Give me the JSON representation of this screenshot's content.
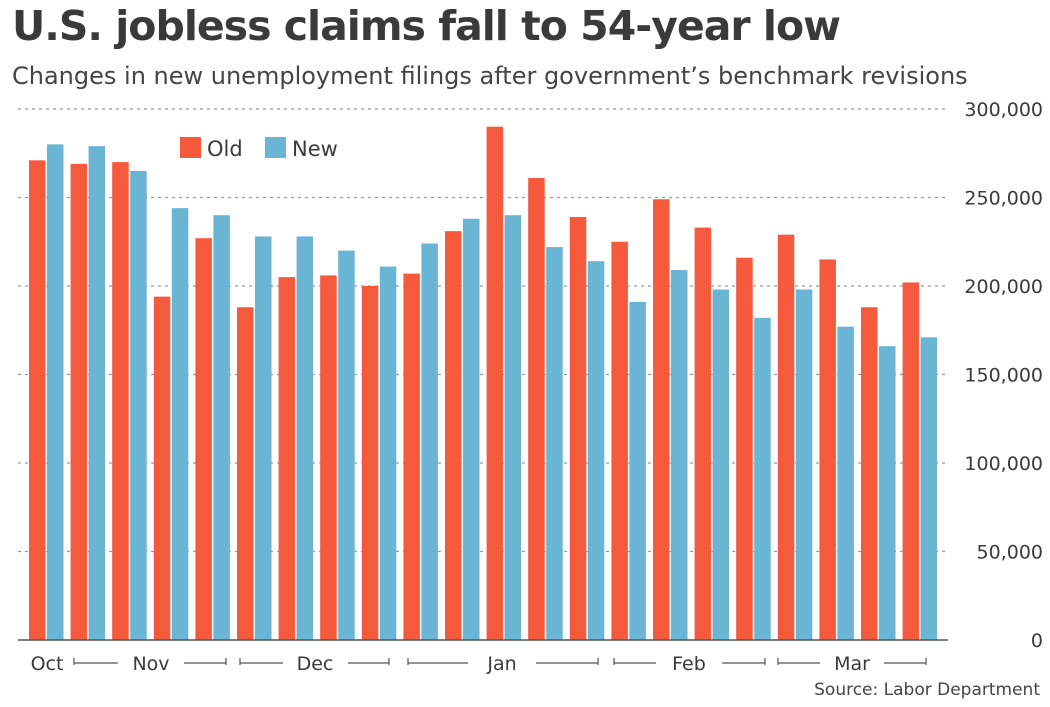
{
  "title": "U.S. jobless claims fall to 54-year low",
  "subtitle": "Changes in new unemployment filings after government’s benchmark revisions",
  "source": "Source: Labor Department",
  "colors": {
    "old": "#f55a3d",
    "new": "#6ab4d4",
    "grid": "#999999",
    "axis": "#555555"
  },
  "chart_data": {
    "type": "bar",
    "title": "U.S. jobless claims fall to 54-year low",
    "subtitle": "Changes in new unemployment filings after government’s benchmark revisions",
    "xlabel": "",
    "ylabel": "",
    "ylim": [
      0,
      300000
    ],
    "yticks": [
      0,
      50000,
      100000,
      150000,
      200000,
      250000,
      300000
    ],
    "ytick_labels": [
      "0",
      "50,000",
      "100,000",
      "150,000",
      "200,000",
      "250,000",
      "300,000"
    ],
    "grid": "horizontal dotted",
    "legend": "top-left",
    "month_labels": [
      "Oct",
      "Nov",
      "Dec",
      "Jan",
      "Feb",
      "Mar"
    ],
    "series": [
      {
        "name": "Old",
        "color": "#f55a3d",
        "values": [
          271000,
          269000,
          270000,
          194000,
          227000,
          188000,
          205000,
          206000,
          200000,
          207000,
          231000,
          290000,
          261000,
          239000,
          225000,
          249000,
          233000,
          216000,
          229000,
          215000,
          188000,
          202000
        ]
      },
      {
        "name": "New",
        "color": "#6ab4d4",
        "values": [
          280000,
          279000,
          265000,
          244000,
          240000,
          228000,
          228000,
          220000,
          211000,
          224000,
          238000,
          240000,
          222000,
          214000,
          191000,
          209000,
          198000,
          182000,
          198000,
          177000,
          166000,
          171000
        ]
      }
    ]
  }
}
